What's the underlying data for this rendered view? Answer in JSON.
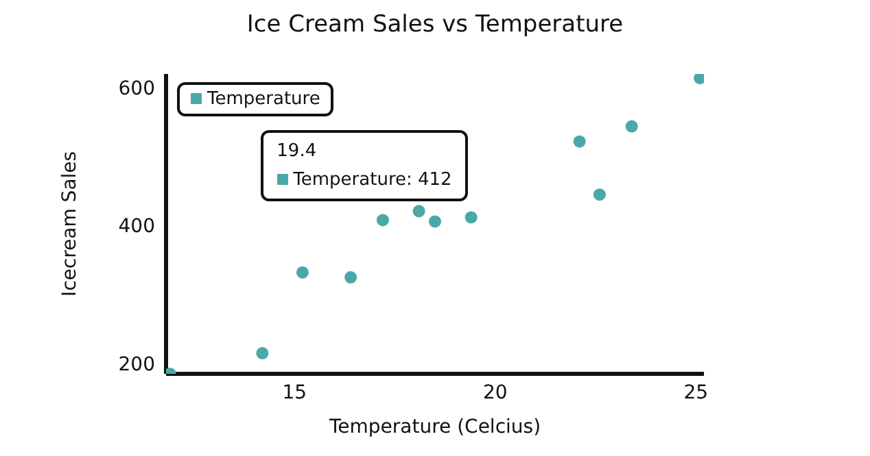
{
  "chart_data": {
    "type": "scatter",
    "title": "Ice Cream Sales vs Temperature",
    "xlabel": "Temperature (Celcius)",
    "ylabel": "Icecream Sales",
    "x": [
      11.9,
      14.2,
      15.2,
      16.4,
      17.2,
      18.1,
      18.5,
      19.4,
      22.1,
      22.6,
      23.4,
      25.1
    ],
    "series": [
      {
        "name": "Temperature",
        "color": "#4aa8a8",
        "values": [
          185,
          215,
          332,
          325,
          408,
          421,
          406,
          412,
          522,
          445,
          544,
          614
        ]
      }
    ],
    "xlim": [
      11.8,
      25.2
    ],
    "ylim": [
      185,
      620
    ],
    "xticks": [
      15,
      20,
      25
    ],
    "yticks": [
      200,
      400,
      600
    ],
    "legend": "top left",
    "grid": false,
    "marker": "circle",
    "annotations": [
      {
        "text": "19.4\nTemperature: 412",
        "x": 19.4,
        "y": 412
      }
    ]
  }
}
